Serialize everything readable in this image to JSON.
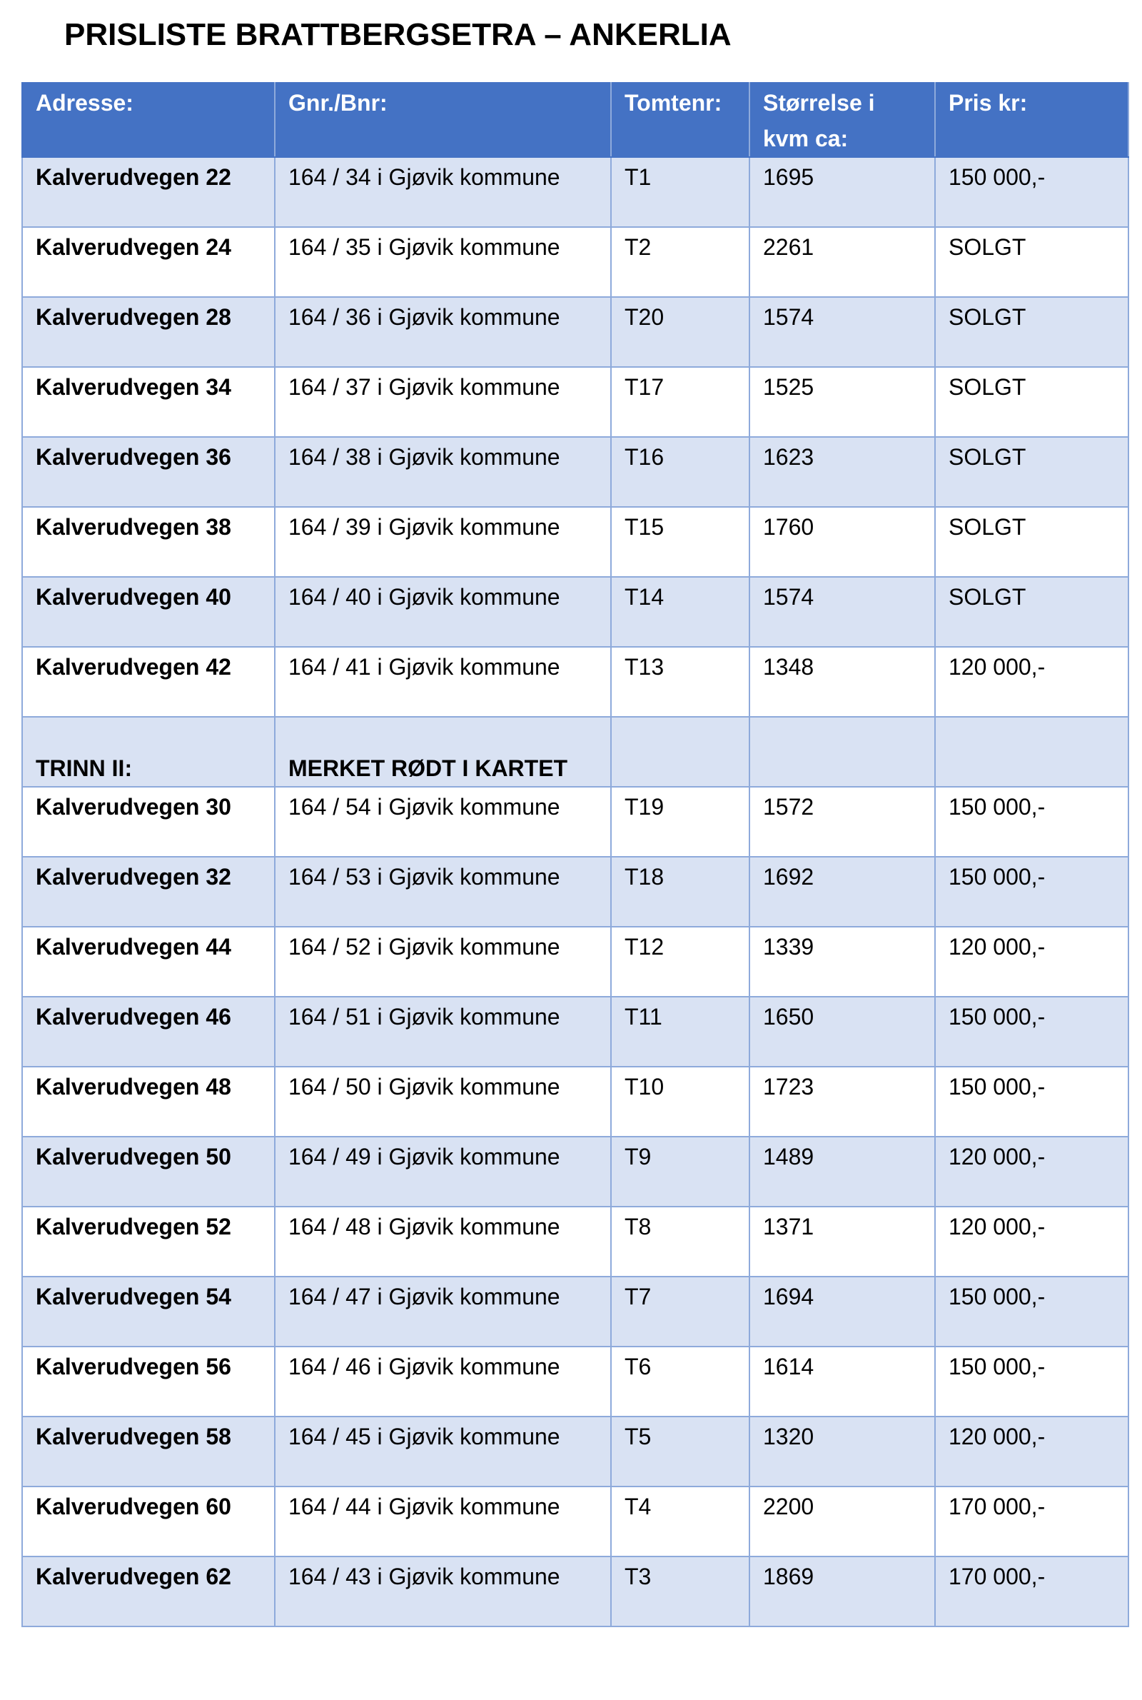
{
  "title": "PRISLISTE BRATTBERGSETRA – ANKERLIA",
  "table": {
    "header": [
      "Adresse:",
      "Gnr./Bnr:",
      "Tomtenr:",
      "Størrelse i kvm ca:",
      "Pris kr:"
    ],
    "rows": [
      [
        "Kalverudvegen 22",
        "164 / 34 i Gjøvik kommune",
        "T1",
        "1695",
        "150 000,-"
      ],
      [
        "Kalverudvegen 24",
        "164 / 35 i Gjøvik kommune",
        "T2",
        "2261",
        "SOLGT"
      ],
      [
        "Kalverudvegen 28",
        "164 / 36 i Gjøvik kommune",
        "T20",
        "1574",
        "SOLGT"
      ],
      [
        "Kalverudvegen 34",
        "164 / 37 i Gjøvik kommune",
        "T17",
        "1525",
        "SOLGT"
      ],
      [
        "Kalverudvegen 36",
        "164 / 38 i Gjøvik kommune",
        "T16",
        "1623",
        "SOLGT"
      ],
      [
        "Kalverudvegen 38",
        "164 / 39 i Gjøvik kommune",
        "T15",
        "1760",
        "SOLGT"
      ],
      [
        "Kalverudvegen 40",
        "164 / 40 i Gjøvik kommune",
        "T14",
        "1574",
        "SOLGT"
      ],
      [
        "Kalverudvegen 42",
        "164 / 41 i Gjøvik kommune",
        "T13",
        "1348",
        "120 000,-"
      ]
    ],
    "section": {
      "label": "TRINN II:",
      "note": "MERKET RØDT I KARTET"
    },
    "rows2": [
      [
        "Kalverudvegen 30",
        "164 / 54 i Gjøvik kommune",
        "T19",
        "1572",
        "150 000,-"
      ],
      [
        "Kalverudvegen 32",
        "164 / 53 i Gjøvik kommune",
        "T18",
        "1692",
        "150 000,-"
      ],
      [
        "Kalverudvegen 44",
        "164 / 52 i Gjøvik kommune",
        "T12",
        "1339",
        "120 000,-"
      ],
      [
        "Kalverudvegen 46",
        "164 / 51 i Gjøvik kommune",
        "T11",
        "1650",
        "150 000,-"
      ],
      [
        "Kalverudvegen 48",
        "164 / 50 i Gjøvik kommune",
        "T10",
        "1723",
        "150 000,-"
      ],
      [
        "Kalverudvegen 50",
        "164 / 49 i Gjøvik kommune",
        "T9",
        "1489",
        "120 000,-"
      ],
      [
        "Kalverudvegen 52",
        "164 / 48 i Gjøvik kommune",
        "T8",
        "1371",
        "120 000,-"
      ],
      [
        "Kalverudvegen 54",
        "164 / 47 i Gjøvik kommune",
        "T7",
        "1694",
        "150 000,-"
      ],
      [
        "Kalverudvegen 56",
        "164 / 46 i Gjøvik kommune",
        "T6",
        "1614",
        "150 000,-"
      ],
      [
        "Kalverudvegen 58",
        "164 / 45 i Gjøvik kommune",
        "T5",
        "1320",
        "120 000,-"
      ],
      [
        "Kalverudvegen 60",
        "164 / 44 i Gjøvik kommune",
        "T4",
        "2200",
        "170 000,-"
      ],
      [
        "Kalverudvegen 62",
        "164 / 43 i Gjøvik kommune",
        "T3",
        "1869",
        "170 000,-"
      ]
    ]
  }
}
